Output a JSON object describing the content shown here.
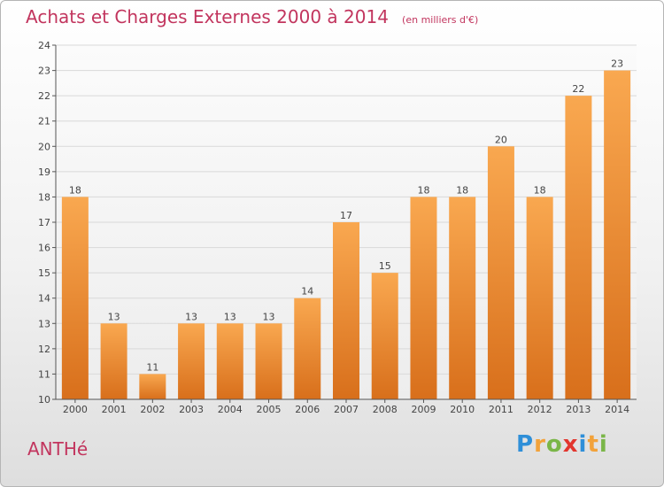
{
  "header": {
    "title": "Achats et Charges Externes 2000 à 2014",
    "unit": "(en milliers d'€)"
  },
  "footer": {
    "commune": "ANTHé",
    "logo": {
      "text": "Proxiti",
      "letters": [
        {
          "ch": "P",
          "color": "#2f8fd8"
        },
        {
          "ch": "r",
          "color": "#f2a23a"
        },
        {
          "ch": "o",
          "color": "#7ab648"
        },
        {
          "ch": "x",
          "color": "#e2362e"
        },
        {
          "ch": "i",
          "color": "#2f8fd8"
        },
        {
          "ch": "t",
          "color": "#f2a23a"
        },
        {
          "ch": "i",
          "color": "#7ab648"
        }
      ]
    }
  },
  "chart_data": {
    "type": "bar",
    "title": "Achats et Charges Externes 2000 à 2014",
    "subtitle": "(en milliers d'€)",
    "xlabel": "",
    "ylabel": "",
    "categories": [
      "2000",
      "2001",
      "2002",
      "2003",
      "2004",
      "2005",
      "2006",
      "2007",
      "2008",
      "2009",
      "2010",
      "2011",
      "2012",
      "2013",
      "2014"
    ],
    "values": [
      18,
      13,
      11,
      13,
      13,
      13,
      14,
      17,
      15,
      18,
      18,
      20,
      18,
      22,
      23
    ],
    "data_labels": [
      "18",
      "13",
      "11",
      "13",
      "13",
      "13",
      "14",
      "17",
      "15",
      "18",
      "18",
      "20",
      "18",
      "22",
      "23"
    ],
    "ylim": [
      10,
      24
    ],
    "yticks": [
      "10",
      "11",
      "12",
      "13",
      "14",
      "15",
      "16",
      "17",
      "18",
      "19",
      "20",
      "21",
      "22",
      "23",
      "24"
    ],
    "grid": true,
    "legend": "none",
    "colors": {
      "bar_top": "#f9a850",
      "bar_bottom": "#d86f1b",
      "grid": "#d9d9d9",
      "axis": "#555555",
      "text": "#444444",
      "title": "#c2355e"
    }
  }
}
